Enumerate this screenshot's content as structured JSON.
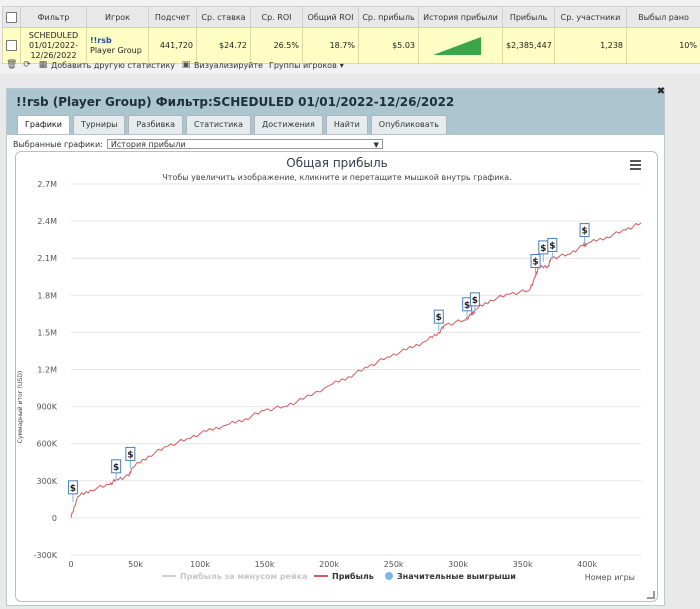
{
  "table": {
    "headers": [
      "",
      "Фильтр",
      "Игрок",
      "Подсчет",
      "Ср. ставка",
      "Ср. ROI",
      "Общий ROI",
      "Ср. прибыль",
      "История прибыли",
      "Прибыль",
      "Ср. участники",
      "Выбыл рано"
    ],
    "row": {
      "filter_line1": "SCHEDULED",
      "filter_line2": "01/01/2022-",
      "filter_line3": "12/26/2022",
      "player_name": "!!rsb",
      "player_group": "Player Group",
      "count": "441,720",
      "avg_stake": "$24.72",
      "avg_roi": "26.5%",
      "total_roi": "18.7%",
      "avg_profit": "$5.03",
      "profit": "$2,385,447",
      "avg_entrants": "1,238",
      "early_out": "10%"
    }
  },
  "toolbar": {
    "add_stat": "Добавить другую статистику",
    "visualize": "Визуализируйте",
    "player_groups": "Группы игроков"
  },
  "panel": {
    "title": "!!rsb (Player Group) Фильтр:SCHEDULED 01/01/2022-12/26/2022",
    "tabs": [
      "Графики",
      "Турниры",
      "Разбивка",
      "Статистика",
      "Достижения",
      "Найти",
      "Опубликовать"
    ],
    "select_label": "Выбранные графики:",
    "select_value": "История прибыли"
  },
  "colors": {
    "profit_line": "#d55b5b",
    "gridline": "#e6e6e6",
    "header_bg": "#adc5cf",
    "row_bg": "#fdfdc4",
    "sparkline": "#3aa64a"
  },
  "chart_data": {
    "type": "line",
    "title": "Общая прибыль",
    "subtitle": "Чтобы увеличить изображение, кликните и перетащите мышкой внутрь графика.",
    "ylabel": "Суммарный итог (USD)",
    "xlabel": "Номер игры",
    "xlim": [
      0,
      441720
    ],
    "ylim": [
      -300000,
      2700000
    ],
    "x_ticks": [
      "0",
      "50k",
      "100k",
      "150k",
      "200k",
      "250k",
      "300k",
      "350k",
      "400k"
    ],
    "y_ticks": [
      "-300K",
      "0",
      "300K",
      "600K",
      "900K",
      "1.2M",
      "1.5M",
      "1.8M",
      "2.1M",
      "2.4M",
      "2.7M"
    ],
    "legend": [
      "Прибыль за минусом рейка",
      "Прибыль",
      "Значительные выигрыши"
    ],
    "series": [
      {
        "name": "Прибыль",
        "x": [
          0,
          5000,
          15000,
          30000,
          35000,
          45000,
          47000,
          60000,
          75000,
          90000,
          105000,
          120000,
          135000,
          150000,
          165000,
          180000,
          200000,
          215000,
          230000,
          245000,
          260000,
          275000,
          285000,
          290000,
          305000,
          310000,
          313000,
          325000,
          340000,
          355000,
          360000,
          362000,
          370000,
          372000,
          385000,
          397000,
          400000,
          415000,
          430000,
          441720
        ],
        "y": [
          0,
          170000,
          225000,
          270000,
          310000,
          340000,
          400000,
          500000,
          580000,
          640000,
          700000,
          750000,
          800000,
          870000,
          900000,
          960000,
          1070000,
          1140000,
          1220000,
          1300000,
          1360000,
          1430000,
          1500000,
          1560000,
          1600000,
          1640000,
          1680000,
          1760000,
          1810000,
          1840000,
          1950000,
          2020000,
          2040000,
          2100000,
          2130000,
          2200000,
          2220000,
          2270000,
          2330000,
          2385447
        ]
      }
    ],
    "big_wins": [
      {
        "x": 1500,
        "y": 130000
      },
      {
        "x": 35000,
        "y": 300000
      },
      {
        "x": 46000,
        "y": 400000
      },
      {
        "x": 285000,
        "y": 1510000
      },
      {
        "x": 307000,
        "y": 1610000
      },
      {
        "x": 313000,
        "y": 1650000
      },
      {
        "x": 360000,
        "y": 1960000
      },
      {
        "x": 366000,
        "y": 2070000
      },
      {
        "x": 373000,
        "y": 2090000
      },
      {
        "x": 398000,
        "y": 2210000
      }
    ]
  }
}
